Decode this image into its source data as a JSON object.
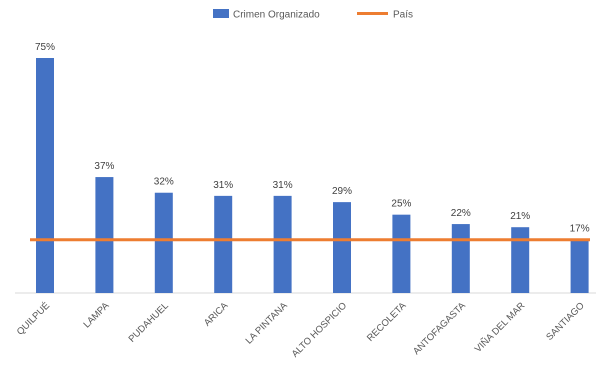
{
  "chart_data": {
    "type": "bar",
    "categories": [
      "QUILPUÉ",
      "LAMPA",
      "PUDAHUEL",
      "ARICA",
      "LA PINTANA",
      "ALTO HOSPICIO",
      "RECOLETA",
      "ANTOFAGASTA",
      "VIÑA DEL MAR",
      "SANTIAGO"
    ],
    "series": [
      {
        "name": "Crimen Organizado",
        "type": "bar",
        "color": "#4472C4",
        "values": [
          75,
          37,
          32,
          31,
          31,
          29,
          25,
          22,
          21,
          17
        ]
      },
      {
        "name": "País",
        "type": "line",
        "color": "#ED7D31",
        "values": [
          17,
          17,
          17,
          17,
          17,
          17,
          17,
          17,
          17,
          17
        ]
      }
    ],
    "data_labels": [
      "75%",
      "37%",
      "32%",
      "31%",
      "31%",
      "29%",
      "25%",
      "22%",
      "21%",
      "17%"
    ],
    "ylim": [
      0,
      80
    ],
    "legend": "top-center",
    "grid": false
  }
}
